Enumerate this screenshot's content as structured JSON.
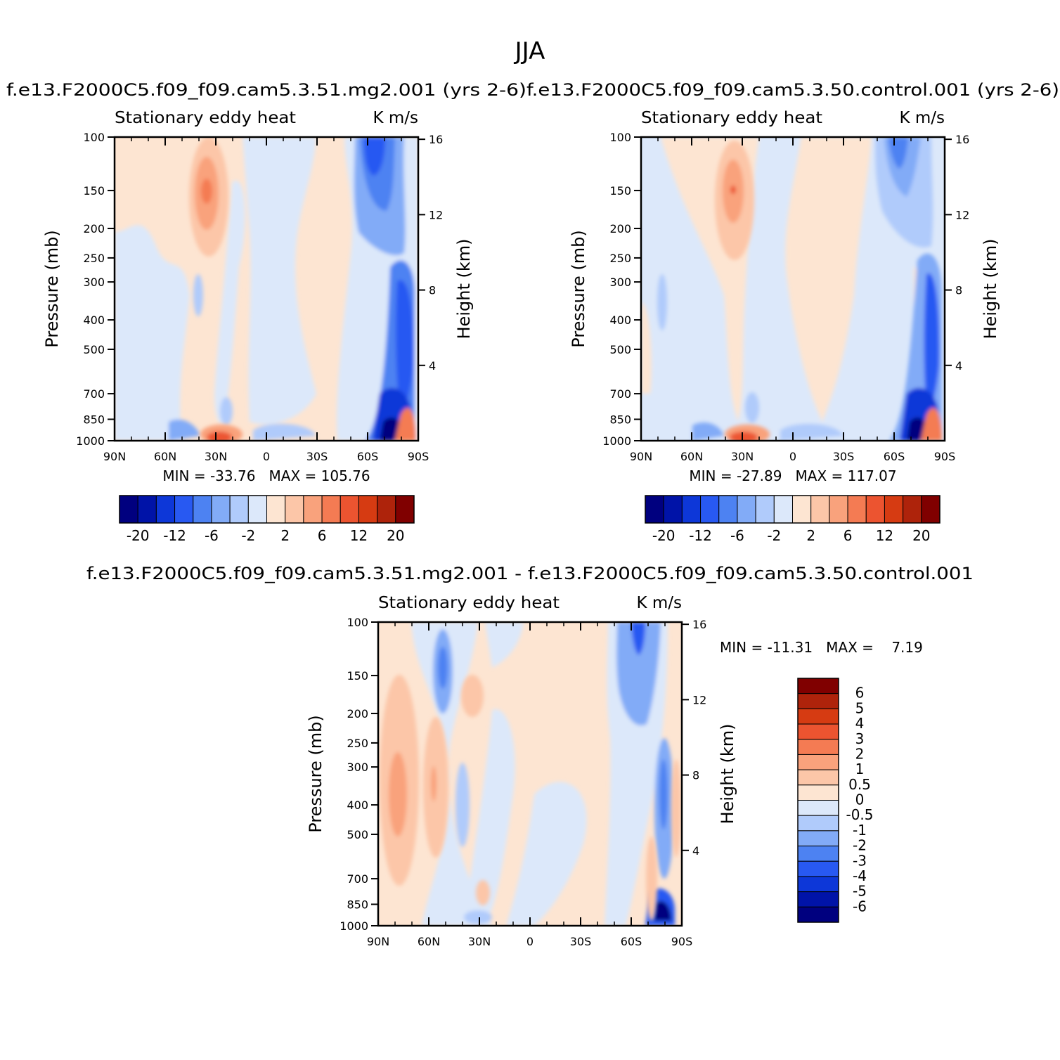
{
  "page": {
    "title": "JJA"
  },
  "colors": {
    "scale": [
      "#00007f",
      "#0013a8",
      "#0d37d8",
      "#2859f2",
      "#4d82f2",
      "#82abf7",
      "#b0cbfb",
      "#dce8fa",
      "#fde5d2",
      "#fcc6a8",
      "#f9a27c",
      "#f47b53",
      "#ec5430",
      "#d63b12",
      "#ae230b",
      "#800000"
    ],
    "axis": "#000000"
  },
  "chart_data": [
    {
      "id": "panel-mg2",
      "type": "contour",
      "title": "f.e13.F2000C5.f09_f09.cam5.3.51.mg2.001 (yrs 2-6)",
      "left_label": "Stationary eddy heat",
      "right_label": "K m/s",
      "ylabel": "Pressure (mb)",
      "y2label": "Height (km)",
      "x_ticks": [
        "90N",
        "60N",
        "30N",
        "0",
        "30S",
        "60S",
        "90S"
      ],
      "xlim": [
        90,
        -90
      ],
      "y_ticks": [
        100,
        150,
        200,
        250,
        300,
        400,
        500,
        700,
        850,
        1000
      ],
      "ylim": [
        1000,
        100
      ],
      "y2_ticks": [
        16,
        12,
        8,
        4
      ],
      "stats": "MIN = -33.76   MAX = 105.76",
      "min": -33.76,
      "max": 105.76,
      "colorbar": {
        "orientation": "horizontal",
        "labels": [
          "-20",
          "-12",
          "-6",
          "-2",
          "2",
          "6",
          "12",
          "20"
        ]
      }
    },
    {
      "id": "panel-control",
      "type": "contour",
      "title": "f.e13.F2000C5.f09_f09.cam5.3.50.control.001 (yrs 2-6)",
      "left_label": "Stationary eddy heat",
      "right_label": "K m/s",
      "ylabel": "Pressure (mb)",
      "y2label": "Height (km)",
      "x_ticks": [
        "90N",
        "60N",
        "30N",
        "0",
        "30S",
        "60S",
        "90S"
      ],
      "xlim": [
        90,
        -90
      ],
      "y_ticks": [
        100,
        150,
        200,
        250,
        300,
        400,
        500,
        700,
        850,
        1000
      ],
      "ylim": [
        1000,
        100
      ],
      "y2_ticks": [
        16,
        12,
        8,
        4
      ],
      "stats": "MIN = -27.89   MAX = 117.07",
      "min": -27.89,
      "max": 117.07,
      "colorbar": {
        "orientation": "horizontal",
        "labels": [
          "-20",
          "-12",
          "-6",
          "-2",
          "2",
          "6",
          "12",
          "20"
        ]
      }
    },
    {
      "id": "panel-diff",
      "type": "contour",
      "title": "f.e13.F2000C5.f09_f09.cam5.3.51.mg2.001 - f.e13.F2000C5.f09_f09.cam5.3.50.control.001",
      "left_label": "Stationary eddy heat",
      "right_label": "K m/s",
      "ylabel": "Pressure (mb)",
      "y2label": "Height (km)",
      "x_ticks": [
        "90N",
        "60N",
        "30N",
        "0",
        "30S",
        "60S",
        "90S"
      ],
      "xlim": [
        90,
        -90
      ],
      "y_ticks": [
        100,
        150,
        200,
        250,
        300,
        400,
        500,
        700,
        850,
        1000
      ],
      "ylim": [
        1000,
        100
      ],
      "y2_ticks": [
        16,
        12,
        8,
        4
      ],
      "stats": "MIN = -11.31   MAX =    7.19",
      "min": -11.31,
      "max": 7.19,
      "colorbar": {
        "orientation": "vertical",
        "labels": [
          "6",
          "5",
          "4",
          "3",
          "2",
          "1",
          "0.5",
          "0",
          "-0.5",
          "-1",
          "-2",
          "-3",
          "-4",
          "-5",
          "-6"
        ]
      }
    }
  ]
}
